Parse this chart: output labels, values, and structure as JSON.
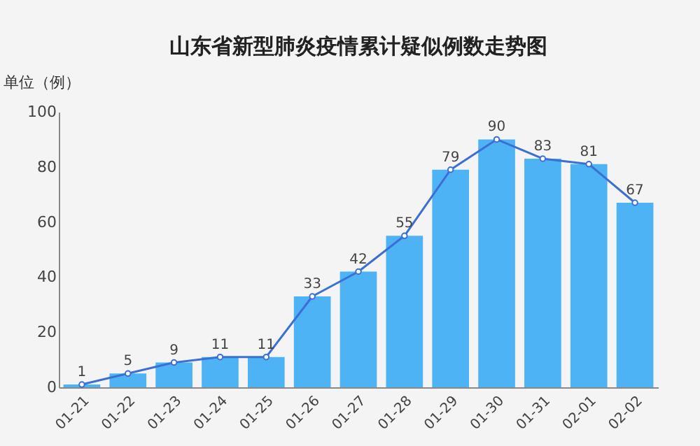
{
  "chart_data": {
    "type": "bar",
    "title": "山东省新型肺炎疫情累计疑似例数走势图",
    "ylabel": "单位（例）",
    "categories": [
      "01-21",
      "01-22",
      "01-23",
      "01-24",
      "01-25",
      "01-26",
      "01-27",
      "01-28",
      "01-29",
      "01-30",
      "01-31",
      "02-01",
      "02-02"
    ],
    "series": [
      {
        "color": "#4db3f5",
        "values": [
          1,
          5,
          9,
          11,
          11,
          33,
          42,
          55,
          79,
          90,
          83,
          81,
          67
        ]
      },
      {
        "type": "line",
        "color": "#3b6fd4",
        "values": [
          1,
          5,
          9,
          11,
          11,
          33,
          42,
          55,
          79,
          90,
          83,
          81,
          67
        ],
        "value_labels": [
          "1",
          "5",
          "9",
          "11",
          "11",
          "33",
          "42",
          "55",
          "79",
          "90",
          "83",
          "81",
          "67"
        ]
      }
    ],
    "ylim": [
      0,
      100
    ],
    "yticks": [
      0,
      20,
      40,
      60,
      80,
      100
    ],
    "grid": false,
    "marker": "circle",
    "line_style": "solid"
  }
}
